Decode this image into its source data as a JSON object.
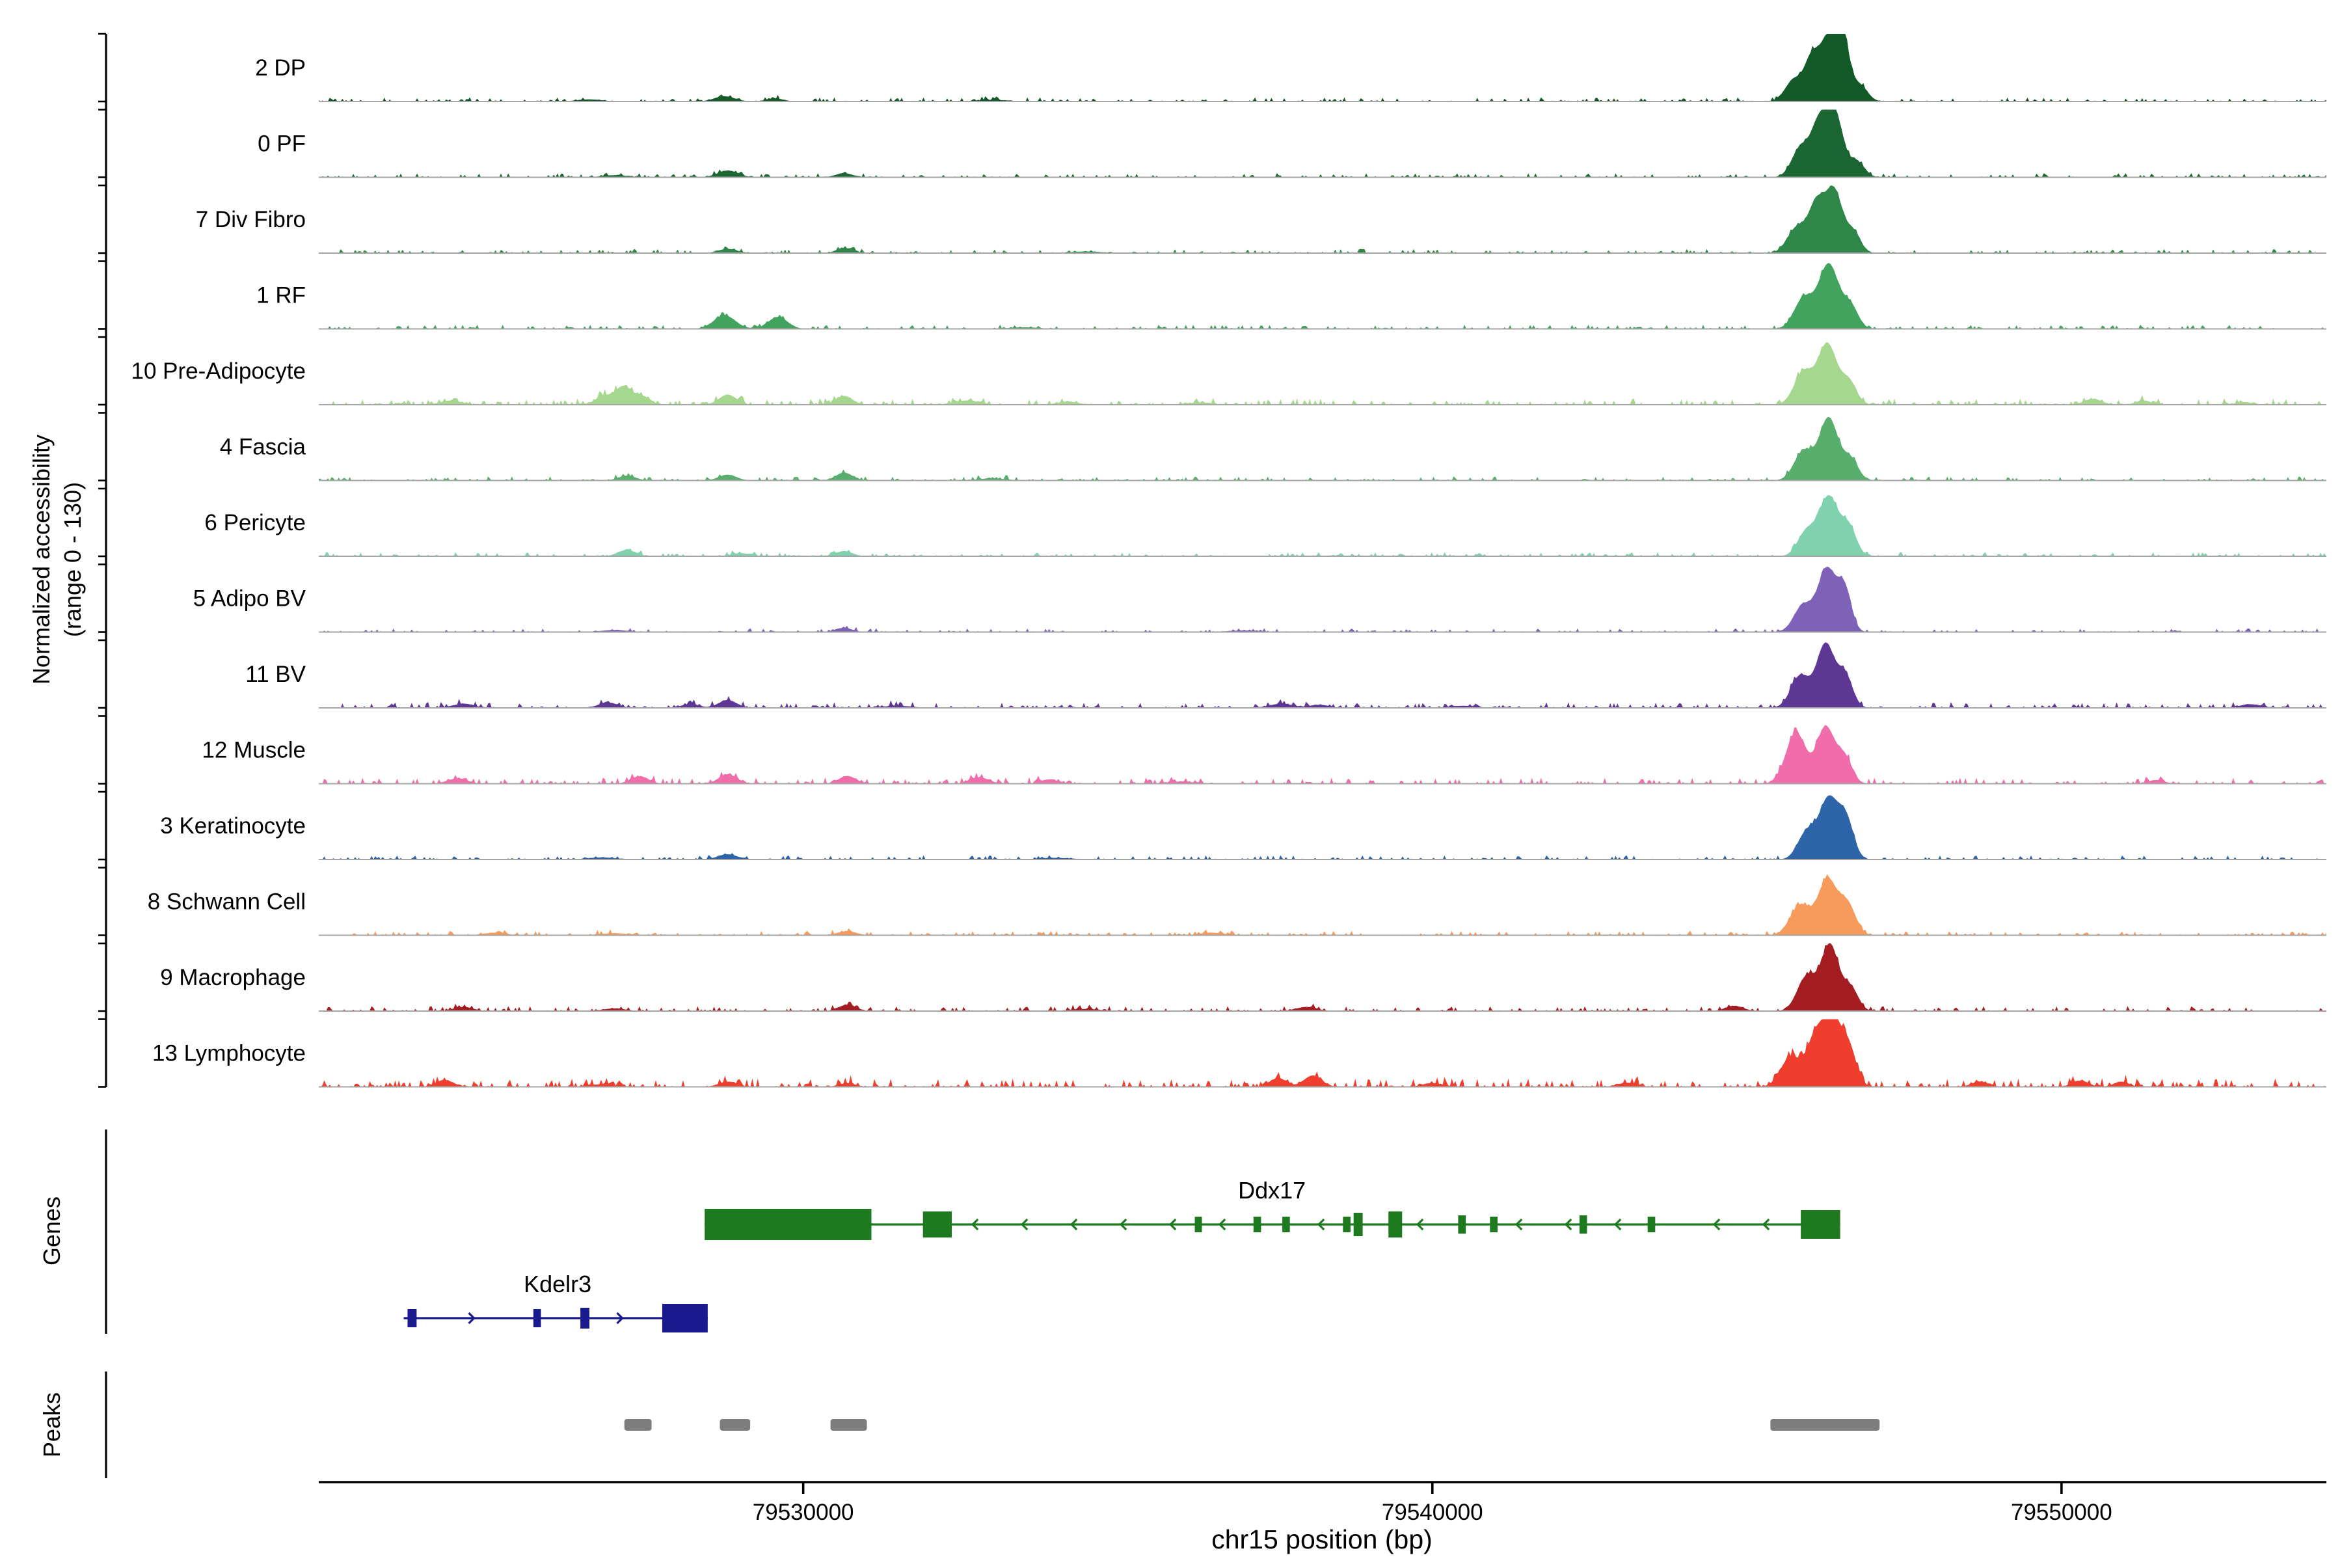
{
  "figure": {
    "xlabel": "chr15 position (bp)",
    "ylabel_line1": "Normalized accessibility",
    "ylabel_line2": "(range 0 - 130)",
    "genes_panel_label": "Genes",
    "peaks_panel_label": "Peaks"
  },
  "chart_data": {
    "type": "area",
    "title": "",
    "xlabel": "chr15 position (bp)",
    "ylabel": "Normalized accessibility (range 0 - 130)",
    "x_range": [
      79522300,
      79554210
    ],
    "x_ticks": [
      79530000,
      79540000,
      79550000
    ],
    "x_tick_labels": [
      "79530000",
      "79540000",
      "79550000"
    ],
    "track_y_range": [
      0,
      130
    ],
    "colors": {
      "baseline": "#a6a6a6",
      "axis": "#000000",
      "peak_box": "#7d7d7d"
    },
    "tracks": [
      {
        "label": "2 DP",
        "color": "#145A28",
        "noise": 1.0,
        "bumps": [
          [
            79526600,
            4,
            200
          ],
          [
            79528750,
            10,
            160
          ],
          [
            79529550,
            6,
            130
          ],
          [
            79533000,
            3,
            250
          ],
          [
            79545750,
            42,
            140
          ],
          [
            79546020,
            68,
            110
          ],
          [
            79546300,
            122,
            150
          ],
          [
            79546520,
            108,
            110
          ],
          [
            79546800,
            30,
            120
          ]
        ]
      },
      {
        "label": "0 PF",
        "color": "#1B6632",
        "noise": 1.0,
        "bumps": [
          [
            79527000,
            4,
            200
          ],
          [
            79528800,
            13,
            160
          ],
          [
            79530650,
            8,
            130
          ],
          [
            79545850,
            55,
            140
          ],
          [
            79546150,
            100,
            130
          ],
          [
            79546400,
            118,
            130
          ],
          [
            79546750,
            30,
            120
          ]
        ]
      },
      {
        "label": "7 Div Fibro",
        "color": "#2E8748",
        "noise": 1.0,
        "bumps": [
          [
            79528800,
            8,
            150
          ],
          [
            79530650,
            10,
            120
          ],
          [
            79534500,
            3,
            250
          ],
          [
            79545800,
            50,
            150
          ],
          [
            79546100,
            85,
            120
          ],
          [
            79546380,
            122,
            140
          ],
          [
            79546700,
            38,
            110
          ]
        ]
      },
      {
        "label": "1 RF",
        "color": "#41A35E",
        "noise": 1.0,
        "bumps": [
          [
            79528750,
            26,
            170
          ],
          [
            79529600,
            23,
            150
          ],
          [
            79533500,
            3,
            250
          ],
          [
            79545900,
            58,
            150
          ],
          [
            79546300,
            124,
            160
          ],
          [
            79546650,
            42,
            120
          ]
        ]
      },
      {
        "label": "10 Pre-Adipocyte",
        "color": "#A6D78F",
        "noise": 1.5,
        "bumps": [
          [
            79524400,
            8,
            160
          ],
          [
            79526850,
            17,
            140
          ],
          [
            79527150,
            34,
            120
          ],
          [
            79527450,
            16,
            120
          ],
          [
            79528800,
            19,
            140
          ],
          [
            79530650,
            17,
            130
          ],
          [
            79532600,
            8,
            200
          ],
          [
            79534200,
            6,
            160
          ],
          [
            79536300,
            4,
            200
          ],
          [
            79545900,
            62,
            150
          ],
          [
            79546280,
            116,
            150
          ],
          [
            79546620,
            44,
            120
          ],
          [
            79550500,
            11,
            140
          ],
          [
            79551300,
            8,
            120
          ],
          [
            79552900,
            5,
            130
          ]
        ]
      },
      {
        "label": "4 Fascia",
        "color": "#57AE6D",
        "noise": 1.0,
        "bumps": [
          [
            79527200,
            9,
            140
          ],
          [
            79528800,
            11,
            140
          ],
          [
            79530650,
            15,
            130
          ],
          [
            79533000,
            4,
            220
          ],
          [
            79545900,
            56,
            150
          ],
          [
            79546300,
            120,
            150
          ],
          [
            79546650,
            40,
            120
          ]
        ]
      },
      {
        "label": "6 Pericyte",
        "color": "#80D1AD",
        "noise": 1.0,
        "bumps": [
          [
            79527200,
            12,
            140
          ],
          [
            79529000,
            6,
            150
          ],
          [
            79530650,
            10,
            130
          ],
          [
            79545950,
            48,
            140
          ],
          [
            79546300,
            114,
            150
          ],
          [
            79546620,
            55,
            120
          ]
        ]
      },
      {
        "label": "5 Adipo BV",
        "color": "#7D62B8",
        "noise": 0.9,
        "bumps": [
          [
            79527000,
            4,
            200
          ],
          [
            79530650,
            8,
            130
          ],
          [
            79537000,
            3,
            250
          ],
          [
            79545900,
            52,
            150
          ],
          [
            79546270,
            120,
            140
          ],
          [
            79546550,
            82,
            110
          ]
        ]
      },
      {
        "label": "11 BV",
        "color": "#5E3795",
        "noise": 1.4,
        "bumps": [
          [
            79524600,
            8,
            160
          ],
          [
            79526900,
            10,
            150
          ],
          [
            79528200,
            7,
            140
          ],
          [
            79528800,
            15,
            140
          ],
          [
            79531500,
            4,
            220
          ],
          [
            79537600,
            8,
            180
          ],
          [
            79538200,
            6,
            150
          ],
          [
            79540500,
            4,
            200
          ],
          [
            79545850,
            62,
            150
          ],
          [
            79546250,
            122,
            140
          ],
          [
            79546560,
            62,
            120
          ],
          [
            79553000,
            7,
            160
          ]
        ]
      },
      {
        "label": "12 Muscle",
        "color": "#F06CAB",
        "noise": 1.5,
        "bumps": [
          [
            79524500,
            10,
            150
          ],
          [
            79527400,
            14,
            140
          ],
          [
            79528800,
            18,
            140
          ],
          [
            79530700,
            15,
            130
          ],
          [
            79532800,
            12,
            150
          ],
          [
            79533900,
            8,
            130
          ],
          [
            79536000,
            4,
            200
          ],
          [
            79545780,
            98,
            160
          ],
          [
            79546250,
            108,
            140
          ],
          [
            79546550,
            50,
            120
          ],
          [
            79551500,
            7,
            130
          ]
        ]
      },
      {
        "label": "3 Keratinocyte",
        "color": "#2E64A9",
        "noise": 1.0,
        "bumps": [
          [
            79526800,
            4,
            200
          ],
          [
            79528800,
            10,
            150
          ],
          [
            79534000,
            3,
            250
          ],
          [
            79545950,
            52,
            140
          ],
          [
            79546300,
            116,
            150
          ],
          [
            79546580,
            72,
            120
          ]
        ]
      },
      {
        "label": "8 Schwann Cell",
        "color": "#F79B5C",
        "noise": 1.1,
        "bumps": [
          [
            79525100,
            5,
            170
          ],
          [
            79527000,
            4,
            200
          ],
          [
            79530700,
            8,
            140
          ],
          [
            79536500,
            5,
            180
          ],
          [
            79545850,
            58,
            160
          ],
          [
            79546280,
            106,
            150
          ],
          [
            79546600,
            58,
            130
          ]
        ]
      },
      {
        "label": "9 Macrophage",
        "color": "#A31D23",
        "noise": 1.2,
        "bumps": [
          [
            79524600,
            8,
            150
          ],
          [
            79527000,
            5,
            180
          ],
          [
            79530700,
            12,
            140
          ],
          [
            79534500,
            4,
            220
          ],
          [
            79538000,
            8,
            160
          ],
          [
            79544800,
            10,
            140
          ],
          [
            79545950,
            66,
            150
          ],
          [
            79546320,
            126,
            140
          ],
          [
            79546650,
            44,
            120
          ]
        ]
      },
      {
        "label": "13 Lymphocyte",
        "color": "#EF3E2D",
        "noise": 2.0,
        "bumps": [
          [
            79524300,
            13,
            140
          ],
          [
            79526800,
            5,
            180
          ],
          [
            79528800,
            10,
            140
          ],
          [
            79530700,
            7,
            130
          ],
          [
            79537550,
            17,
            130
          ],
          [
            79538100,
            22,
            140
          ],
          [
            79540000,
            7,
            160
          ],
          [
            79543100,
            8,
            150
          ],
          [
            79545700,
            58,
            160
          ],
          [
            79546080,
            88,
            130
          ],
          [
            79546350,
            130,
            140
          ],
          [
            79546620,
            72,
            120
          ],
          [
            79548700,
            10,
            130
          ],
          [
            79550300,
            12,
            130
          ],
          [
            79550950,
            10,
            120
          ]
        ]
      }
    ],
    "genes": [
      {
        "name": "Ddx17",
        "strand": "-",
        "color": "#1E7A1E",
        "start": 79528434,
        "end": 79546482,
        "label_pos": 79537450,
        "exons": [
          [
            79528434,
            79531084,
            24
          ],
          [
            79531903,
            79532361,
            20
          ],
          [
            79536224,
            79536337,
            12
          ],
          [
            79537157,
            79537277,
            12
          ],
          [
            79537615,
            79537735,
            12
          ],
          [
            79538579,
            79538699,
            12
          ],
          [
            79538748,
            79538892,
            18
          ],
          [
            79539302,
            79539519,
            20
          ],
          [
            79540410,
            79540531,
            14
          ],
          [
            79540916,
            79541036,
            12
          ],
          [
            79542338,
            79542458,
            14
          ],
          [
            79543422,
            79543542,
            12
          ],
          [
            79545856,
            79546482,
            22
          ]
        ]
      },
      {
        "name": "Kdelr3",
        "strand": "+",
        "color": "#1A1A8F",
        "start": 79523650,
        "end": 79528482,
        "label_pos": 79526096,
        "exons": [
          [
            79523711,
            79523855,
            14
          ],
          [
            79525711,
            79525831,
            14
          ],
          [
            79526458,
            79526602,
            16
          ],
          [
            79527759,
            79528482,
            22
          ]
        ]
      }
    ],
    "peaks": [
      [
        79527157,
        79527590
      ],
      [
        79528675,
        79529157
      ],
      [
        79530434,
        79531012
      ],
      [
        79545373,
        79547108
      ]
    ]
  }
}
